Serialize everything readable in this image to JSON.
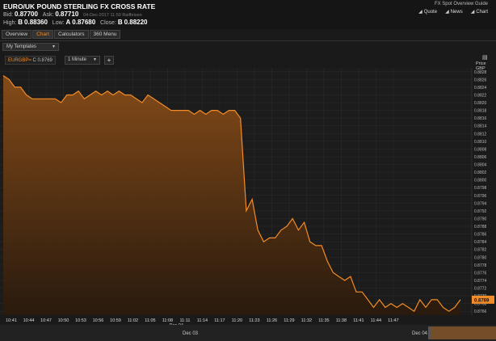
{
  "header": {
    "title": "EURO/UK POUND STERLING FX CROSS RATE",
    "bid_label": "Bid:",
    "bid": "0.87700",
    "ask_label": "Ask:",
    "ask": "0.87710",
    "timestamp": "04-Dec-2017  11:50 Raiffeisen",
    "high_label": "High:",
    "high_src": "B",
    "high": "0.88360",
    "low_label": "Low:",
    "low_src": "A",
    "low": "0.87680",
    "close_label": "Close:",
    "close_src": "B",
    "close": "0.88220",
    "guide_link": "FX Spot Overview Guide",
    "links": {
      "quote": "Quote",
      "news": "News",
      "chart": "Chart"
    }
  },
  "tabs": [
    {
      "label": "Overview",
      "active": false
    },
    {
      "label": "Chart",
      "active": true
    },
    {
      "label": "Calculators",
      "active": false
    },
    {
      "label": "360 Menu",
      "active": false
    }
  ],
  "templates_label": "My Templates",
  "toolbar": {
    "symbol": "EURGBP=",
    "symbol_price": "C 0.8769",
    "interval": "1 Minute",
    "add_label": "+"
  },
  "axis": {
    "unit_line1": "Price",
    "unit_line2": "GBP",
    "current_price": "0.8769"
  },
  "navigator": {
    "left_label": "Dec 03",
    "right_label": "Dec 04"
  },
  "chart_data": {
    "type": "area",
    "color": "#f28c28",
    "ylim": [
      0.8765,
      0.8829
    ],
    "yticks": [
      "0.8828",
      "0.8826",
      "0.8824",
      "0.8822",
      "0.8820",
      "0.8818",
      "0.8816",
      "0.8814",
      "0.8812",
      "0.8810",
      "0.8808",
      "0.8806",
      "0.8804",
      "0.8802",
      "0.8800",
      "0.8798",
      "0.8796",
      "0.8794",
      "0.8792",
      "0.8790",
      "0.8788",
      "0.8786",
      "0.8784",
      "0.8782",
      "0.8780",
      "0.8778",
      "0.8776",
      "0.8774",
      "0.8772",
      "0.8770",
      "0.8768",
      "0.8766"
    ],
    "xticks": [
      "10:41",
      "10:44",
      "10:47",
      "10:50",
      "10:53",
      "10:56",
      "10:59",
      "11:02",
      "11:05",
      "11:08",
      "11:11",
      "11:14",
      "11:17",
      "11:20",
      "11:23",
      "11:26",
      "11:29",
      "11:32",
      "11:35",
      "11:38",
      "11:41",
      "11:44",
      "11:47"
    ],
    "date_label": "Dec 04",
    "x_start_minutes": 0,
    "values": [
      0.8827,
      0.8826,
      0.8824,
      0.8824,
      0.8822,
      0.8821,
      0.8821,
      0.8821,
      0.8821,
      0.8821,
      0.882,
      0.8822,
      0.8822,
      0.8823,
      0.8821,
      0.8822,
      0.8823,
      0.8822,
      0.8823,
      0.8822,
      0.8823,
      0.8822,
      0.8822,
      0.8821,
      0.882,
      0.8822,
      0.8821,
      0.882,
      0.8819,
      0.8818,
      0.8818,
      0.8818,
      0.8818,
      0.8817,
      0.8818,
      0.8817,
      0.8818,
      0.8818,
      0.8817,
      0.8818,
      0.8818,
      0.8816,
      0.8792,
      0.8795,
      0.8787,
      0.8784,
      0.8785,
      0.8785,
      0.8787,
      0.8788,
      0.879,
      0.8787,
      0.8789,
      0.8784,
      0.8783,
      0.8783,
      0.8779,
      0.8776,
      0.8775,
      0.8774,
      0.8775,
      0.8771,
      0.8771,
      0.8769,
      0.8767,
      0.8769,
      0.8767,
      0.8768,
      0.8767,
      0.8768,
      0.8767,
      0.8766,
      0.8769,
      0.8767,
      0.8769,
      0.8769,
      0.8767,
      0.8766,
      0.8767,
      0.8769
    ]
  }
}
